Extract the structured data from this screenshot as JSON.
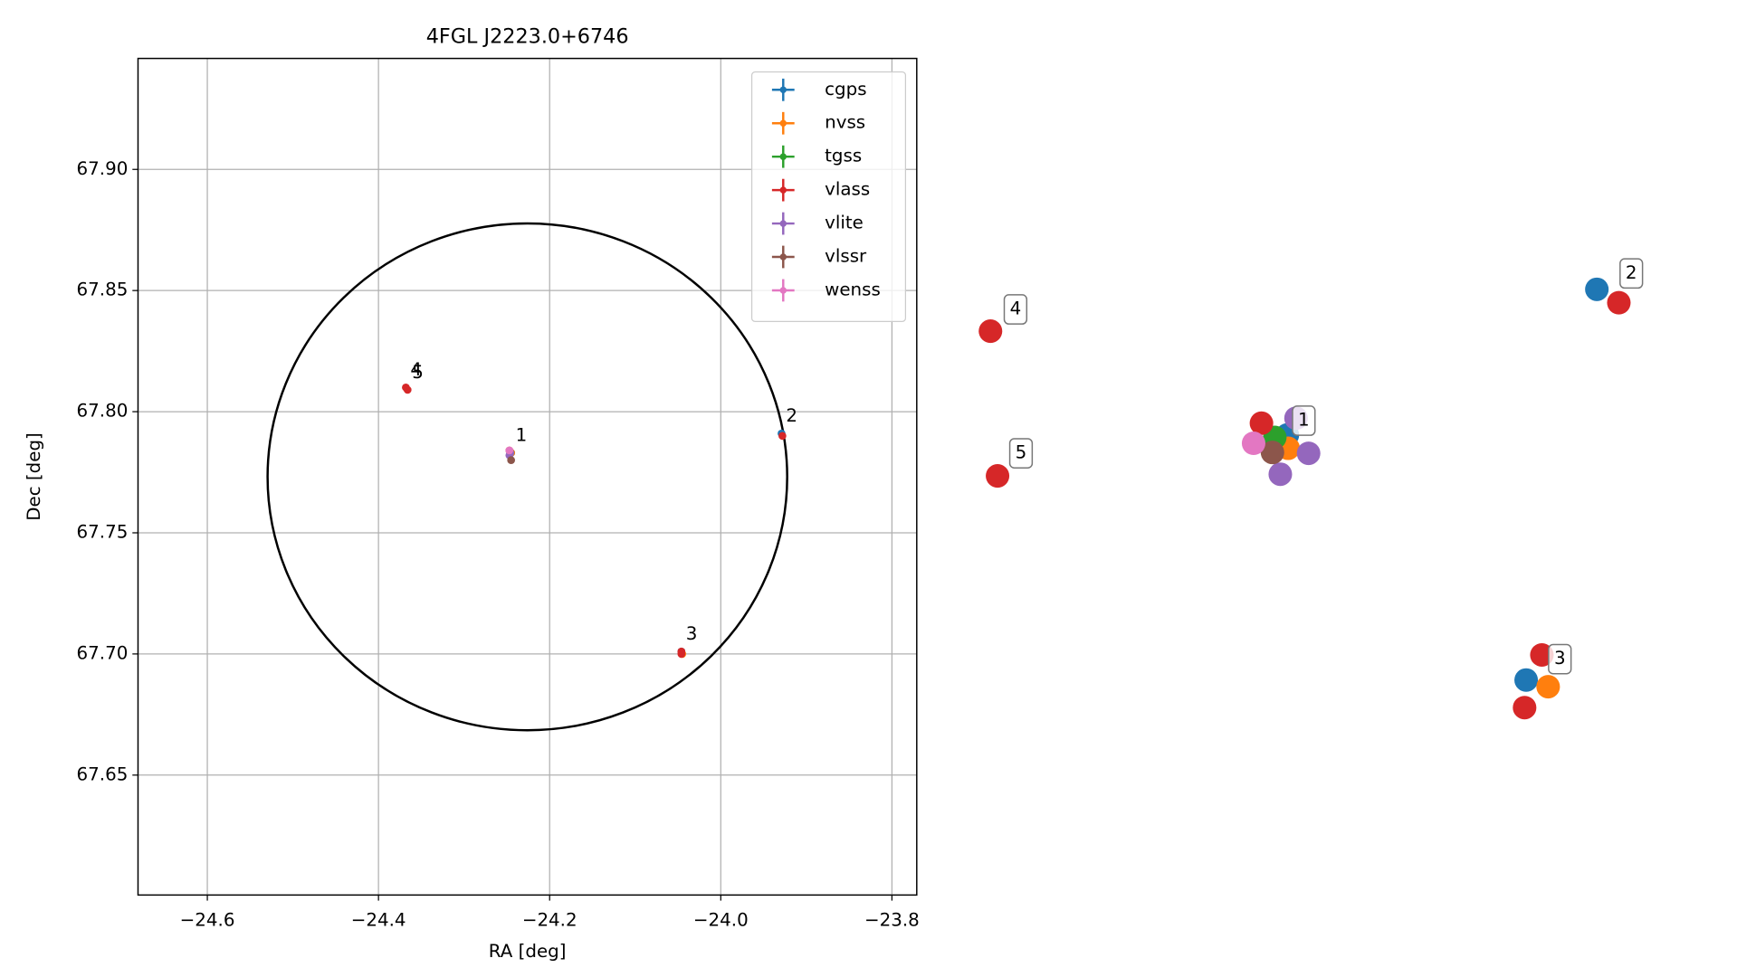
{
  "chart_data": [
    {
      "type": "scatter",
      "title": "4FGL J2223.0+6746",
      "xlabel": "RA [deg]",
      "ylabel": "Dec [deg]",
      "xlim": [
        -24.681,
        -23.771
      ],
      "ylim": [
        67.6005,
        67.9458
      ],
      "xticks": [
        {
          "value": -24.6,
          "label": "−24.6"
        },
        {
          "value": -24.4,
          "label": "−24.4"
        },
        {
          "value": -24.2,
          "label": "−24.2"
        },
        {
          "value": -24.0,
          "label": "−24.0"
        },
        {
          "value": -23.8,
          "label": "−23.8"
        }
      ],
      "yticks": [
        67.65,
        {
          "value": 67.7,
          "label": "67.70"
        },
        67.75,
        {
          "value": 67.8,
          "label": "67.80"
        },
        67.85,
        {
          "value": 67.9,
          "label": "67.90"
        }
      ],
      "grid": true,
      "legend": "upper right",
      "circle": {
        "ra": -24.226,
        "dec": 67.7731,
        "ra_radius": 0.3036,
        "dec_radius": 0.1046,
        "color": "#000000"
      },
      "series": [
        {
          "name": "cgps",
          "color": "#1f77b4",
          "x": [
            -24.245,
            -23.929,
            -24.046
          ],
          "values": [
            67.783,
            67.791,
            67.701
          ]
        },
        {
          "name": "nvss",
          "color": "#ff7f0e",
          "x": [
            -24.245,
            -24.045
          ],
          "values": [
            67.783,
            67.7
          ]
        },
        {
          "name": "tgss",
          "color": "#2ca02c",
          "x": [
            -24.246
          ],
          "values": [
            67.783
          ]
        },
        {
          "name": "vlass",
          "color": "#d62728",
          "x": [
            -24.247,
            -23.928,
            -24.046,
            -24.046,
            -24.368,
            -24.366
          ],
          "values": [
            67.784,
            67.79,
            67.701,
            67.7,
            67.81,
            67.809
          ]
        },
        {
          "name": "vlite",
          "color": "#9467bd",
          "x": [
            -24.246,
            -24.247
          ],
          "values": [
            67.783,
            67.782
          ]
        },
        {
          "name": "vlssr",
          "color": "#8c564b",
          "x": [
            -24.245
          ],
          "values": [
            67.78
          ]
        },
        {
          "name": "wenss",
          "color": "#e377c2",
          "x": [
            -24.247
          ],
          "values": [
            67.784
          ]
        }
      ],
      "annotations": [
        {
          "text": "1",
          "x": -24.245,
          "y": 67.783
        },
        {
          "text": "2",
          "x": -23.929,
          "y": 67.791
        },
        {
          "text": "3",
          "x": -24.046,
          "y": 67.701
        },
        {
          "text": "4",
          "x": -24.368,
          "y": 67.81
        },
        {
          "text": "5",
          "x": -24.366,
          "y": 67.809
        }
      ]
    },
    {
      "type": "scatter",
      "xlim": [
        0,
        1
      ],
      "ylim": [
        0,
        1
      ],
      "series": [
        {
          "color": "#1f77b4",
          "x": [
            0.439,
            0.833,
            0.743
          ],
          "values": [
            0.55,
            0.724,
            0.257
          ]
        },
        {
          "color": "#ff7f0e",
          "x": [
            0.44,
            0.771
          ],
          "values": [
            0.534,
            0.249
          ]
        },
        {
          "color": "#2ca02c",
          "x": [
            0.423
          ],
          "values": [
            0.547
          ]
        },
        {
          "color": "#d62728",
          "x": [
            0.406,
            0.861,
            0.763,
            0.741,
            0.061,
            0.07
          ],
          "values": [
            0.564,
            0.708,
            0.287,
            0.224,
            0.674,
            0.501
          ]
        },
        {
          "color": "#9467bd",
          "x": [
            0.466,
            0.43,
            0.45
          ],
          "values": [
            0.528,
            0.503,
            0.57
          ]
        },
        {
          "color": "#8c564b",
          "x": [
            0.42
          ],
          "values": [
            0.529
          ]
        },
        {
          "color": "#e377c2",
          "x": [
            0.396
          ],
          "values": [
            0.54
          ]
        }
      ],
      "annotations": [
        {
          "text": "1",
          "x": 0.457,
          "y": 0.567
        },
        {
          "text": "2",
          "x": 0.874,
          "y": 0.743
        },
        {
          "text": "3",
          "x": 0.783,
          "y": 0.282
        },
        {
          "text": "4",
          "x": 0.09,
          "y": 0.7
        },
        {
          "text": "5",
          "x": 0.097,
          "y": 0.528
        }
      ]
    }
  ]
}
